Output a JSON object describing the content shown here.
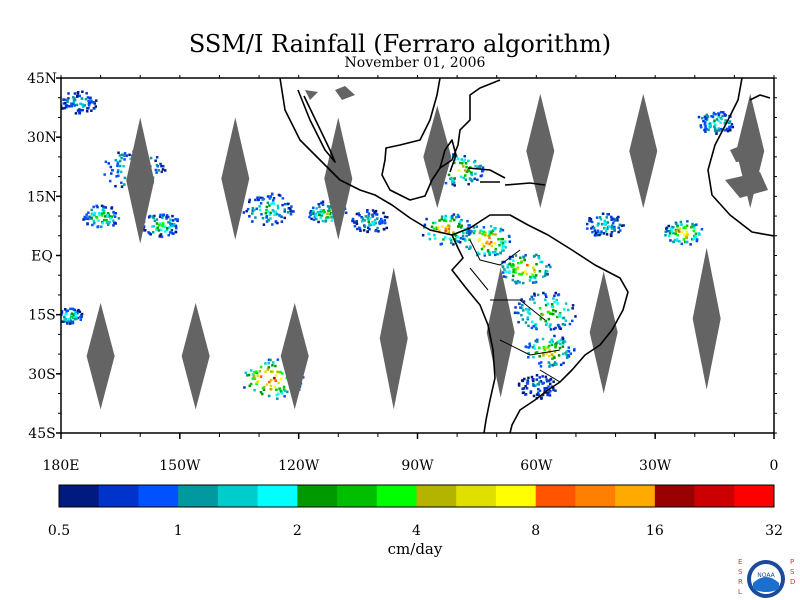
{
  "title": "SSM/I Rainfall (Ferraro algorithm)",
  "date": "November 01, 2006",
  "units": "cm/day",
  "map": {
    "lat_range": [
      -45,
      45
    ],
    "lon_range": [
      -180,
      0
    ],
    "lat_labels": [
      "45N",
      "30N",
      "15N",
      "EQ",
      "15S",
      "30S",
      "45S"
    ],
    "lat_values": [
      45,
      30,
      15,
      0,
      -15,
      -30,
      -45
    ],
    "lon_labels": [
      "180E",
      "150W",
      "120W",
      "90W",
      "60W",
      "30W",
      "0"
    ],
    "lon_values": [
      -180,
      -150,
      -120,
      -90,
      -60,
      -30,
      0
    ],
    "land_outline_color": "#000000",
    "no_data_color": "#646464",
    "swath_gaps": [
      {
        "lon": -160,
        "lat_top": 35,
        "lat_bottom": 3
      },
      {
        "lon": -136,
        "lat_top": 35,
        "lat_bottom": 4
      },
      {
        "lon": -110,
        "lat_top": 35,
        "lat_bottom": 4
      },
      {
        "lon": -85,
        "lat_top": 38,
        "lat_bottom": 12
      },
      {
        "lon": -59,
        "lat_top": 41,
        "lat_bottom": 12
      },
      {
        "lon": -33,
        "lat_top": 41,
        "lat_bottom": 12
      },
      {
        "lon": -6,
        "lat_top": 41,
        "lat_bottom": 12
      },
      {
        "lon": -170,
        "lat_top": -12,
        "lat_bottom": -39
      },
      {
        "lon": -146,
        "lat_top": -12,
        "lat_bottom": -39
      },
      {
        "lon": -121,
        "lat_top": -12,
        "lat_bottom": -39
      },
      {
        "lon": -96,
        "lat_top": -3,
        "lat_bottom": -39
      },
      {
        "lon": -69,
        "lat_top": -3,
        "lat_bottom": -36
      },
      {
        "lon": -43,
        "lat_top": -4,
        "lat_bottom": -35
      },
      {
        "lon": -17,
        "lat_top": 2,
        "lat_bottom": -34
      }
    ],
    "rain_clusters": [
      {
        "lon": -176,
        "lat": 39,
        "r": 3,
        "level": 6
      },
      {
        "lon": -162,
        "lat": 22,
        "r": 5,
        "level": 8
      },
      {
        "lon": -170,
        "lat": 10,
        "r": 3,
        "level": 10
      },
      {
        "lon": -155,
        "lat": 8,
        "r": 3,
        "level": 9
      },
      {
        "lon": -128,
        "lat": 12,
        "r": 4,
        "level": 8
      },
      {
        "lon": -113,
        "lat": 11,
        "r": 3,
        "level": 10
      },
      {
        "lon": -102,
        "lat": 9,
        "r": 3,
        "level": 7
      },
      {
        "lon": -83,
        "lat": 7,
        "r": 4,
        "level": 14
      },
      {
        "lon": -80,
        "lat": 22,
        "r": 4,
        "level": 12
      },
      {
        "lon": -73,
        "lat": 4,
        "r": 4,
        "level": 16
      },
      {
        "lon": -63,
        "lat": -3,
        "r": 4,
        "level": 15
      },
      {
        "lon": -58,
        "lat": -14,
        "r": 5,
        "level": 11
      },
      {
        "lon": -57,
        "lat": -24,
        "r": 4,
        "level": 13
      },
      {
        "lon": -127,
        "lat": -31,
        "r": 5,
        "level": 17
      },
      {
        "lon": -43,
        "lat": 8,
        "r": 3,
        "level": 7
      },
      {
        "lon": -23,
        "lat": 6,
        "r": 3,
        "level": 15
      },
      {
        "lon": -15,
        "lat": 34,
        "r": 3,
        "level": 8
      },
      {
        "lon": -178,
        "lat": -15,
        "r": 2,
        "level": 9
      },
      {
        "lon": -60,
        "lat": -33,
        "r": 3,
        "level": 5
      }
    ]
  },
  "colorbar": {
    "colors": [
      "#001a80",
      "#0033cc",
      "#0052ff",
      "#00999f",
      "#00cccc",
      "#00ffff",
      "#009900",
      "#00bf00",
      "#00ff00",
      "#b3b300",
      "#e0e000",
      "#ffff00",
      "#ff5500",
      "#ff8000",
      "#ffaa00",
      "#990000",
      "#cc0000",
      "#ff0000"
    ],
    "tick_labels": [
      "0.5",
      "1",
      "2",
      "4",
      "8",
      "16",
      "32"
    ]
  },
  "logo": {
    "left_letters": "ESRL",
    "right_letters": "PSD",
    "center_text": "NOAA"
  }
}
